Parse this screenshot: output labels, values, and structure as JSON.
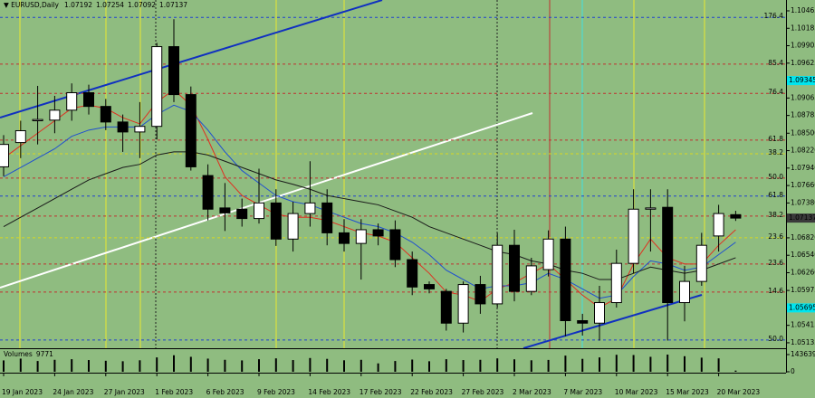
{
  "chart_data": {
    "type": "candlestick",
    "symbol": "EURUSD,Daily",
    "categories": [
      "19 Jan 2023",
      null,
      null,
      "24 Jan 2023",
      null,
      null,
      "27 Jan 2023",
      null,
      null,
      "1 Feb 2023",
      null,
      null,
      "6 Feb 2023",
      null,
      null,
      "9 Feb 2023",
      null,
      null,
      "14 Feb 2023",
      null,
      null,
      "17 Feb 2023",
      null,
      null,
      "22 Feb 2023",
      null,
      null,
      "27 Feb 2023",
      null,
      null,
      "2 Mar 2023",
      null,
      null,
      "7 Mar 2023",
      null,
      null,
      "10 Mar 2023",
      null,
      null,
      "15 Mar 2023",
      null,
      null,
      "20 Mar 2023",
      null
    ],
    "open": [
      1.0796,
      1.0835,
      1.087,
      1.0871,
      1.0887,
      1.0915,
      1.0893,
      1.0868,
      1.0852,
      1.0861,
      1.0989,
      1.0912,
      1.0782,
      1.073,
      1.0728,
      1.0713,
      1.0738,
      1.068,
      1.0721,
      1.0738,
      1.069,
      1.0673,
      1.0695,
      1.0695,
      1.0647,
      1.0607,
      1.0596,
      1.0545,
      1.0607,
      1.0576,
      1.067,
      1.0596,
      1.0631,
      1.068,
      1.0549,
      1.0545,
      1.0578,
      1.0641,
      1.0728,
      1.0731,
      1.0578,
      1.0612,
      1.0685,
      1.07192
    ],
    "high": [
      1.0847,
      1.087,
      1.0926,
      1.091,
      1.093,
      1.0928,
      1.0905,
      1.088,
      1.09,
      1.0995,
      1.1033,
      1.0925,
      1.08,
      1.077,
      1.0745,
      1.0793,
      1.076,
      1.074,
      1.0805,
      1.076,
      1.0712,
      1.0712,
      1.0705,
      1.071,
      1.066,
      1.0612,
      1.06,
      1.0612,
      1.0621,
      1.069,
      1.0695,
      1.065,
      1.0694,
      1.07,
      1.056,
      1.0605,
      1.0663,
      1.076,
      1.076,
      1.076,
      1.0637,
      1.069,
      1.0735,
      1.07254
    ],
    "low": [
      1.0781,
      1.081,
      1.0832,
      1.085,
      1.087,
      1.088,
      1.0855,
      1.082,
      1.081,
      1.084,
      1.09,
      1.079,
      1.071,
      1.0693,
      1.07,
      1.0705,
      1.0669,
      1.066,
      1.07,
      1.067,
      1.066,
      1.0615,
      1.067,
      1.0635,
      1.059,
      1.0593,
      1.0533,
      1.053,
      1.056,
      1.057,
      1.058,
      1.059,
      1.062,
      1.0524,
      1.0525,
      1.0517,
      1.057,
      1.0625,
      1.066,
      1.0517,
      1.0548,
      1.0605,
      1.066,
      1.07092
    ],
    "close": [
      1.0832,
      1.0854,
      1.0872,
      1.0887,
      1.0915,
      1.0893,
      1.0868,
      1.0852,
      1.0861,
      1.0989,
      1.0912,
      1.0796,
      1.0728,
      1.0722,
      1.0713,
      1.0738,
      1.068,
      1.0721,
      1.0738,
      1.069,
      1.0673,
      1.0695,
      1.0685,
      1.0647,
      1.0603,
      1.06,
      1.0545,
      1.0607,
      1.0576,
      1.067,
      1.0596,
      1.0637,
      1.068,
      1.0549,
      1.0545,
      1.0578,
      1.0641,
      1.0728,
      1.073,
      1.0578,
      1.0612,
      1.067,
      1.0721,
      1.07137
    ],
    "volumes": [
      95000,
      110000,
      90000,
      100000,
      105000,
      98000,
      92000,
      88000,
      96000,
      120000,
      138000,
      125000,
      110000,
      100000,
      95000,
      105000,
      112000,
      98000,
      115000,
      108000,
      96000,
      100000,
      70000,
      90000,
      102000,
      88000,
      105000,
      98000,
      100000,
      112000,
      104000,
      96000,
      99000,
      135000,
      108000,
      120000,
      142000,
      140000,
      125000,
      143639,
      130000,
      118000,
      112000,
      9771
    ],
    "up_color": "#ffffff",
    "down_color": "#000000",
    "ylim": [
      1.05047,
      1.10639
    ],
    "yticks": [
      1.10465,
      1.10185,
      1.09905,
      1.09625,
      1.09065,
      1.08785,
      {
        "value": 1.085,
        "label": "1.08500"
      },
      {
        "value": 1.0822,
        "label": "1.08220"
      },
      {
        "value": 1.0794,
        "label": "1.07940"
      },
      {
        "value": 1.0766,
        "label": "1.07660"
      },
      {
        "value": 1.0738,
        "label": "1.07380"
      },
      {
        "value": 1.0682,
        "label": "1.06820"
      },
      {
        "value": 1.0654,
        "label": "1.06540"
      },
      {
        "value": 1.0626,
        "label": "1.06260"
      },
      1.05975,
      1.05415,
      1.05135
    ],
    "price_markers": [
      1.09345,
      1.05695
    ],
    "price_marker_color": "#00e5ee",
    "volume_label": "Volumes",
    "volume_ylim": [
      0,
      143639
    ],
    "volume_yticks": [
      143639,
      0
    ],
    "indicators": [
      {
        "color": "#e03020",
        "values": [
          1.081,
          1.083,
          1.085,
          1.087,
          1.089,
          1.0895,
          1.089,
          1.0875,
          1.0865,
          1.09,
          1.092,
          1.0895,
          1.084,
          1.078,
          1.075,
          1.0735,
          1.072,
          1.0715,
          1.0715,
          1.071,
          1.07,
          1.069,
          1.0685,
          1.0675,
          1.065,
          1.0625,
          1.0595,
          1.059,
          1.058,
          1.06,
          1.061,
          1.0625,
          1.064,
          1.0615,
          1.059,
          1.057,
          1.0585,
          1.064,
          1.068,
          1.065,
          1.064,
          1.064,
          1.067,
          1.0695
        ]
      },
      {
        "color": "#1f4fd0",
        "values": [
          1.078,
          1.0795,
          1.081,
          1.0825,
          1.0845,
          1.0855,
          1.086,
          1.086,
          1.086,
          1.088,
          1.0895,
          1.0885,
          1.0855,
          1.082,
          1.079,
          1.077,
          1.075,
          1.074,
          1.0735,
          1.0725,
          1.0715,
          1.0705,
          1.07,
          1.069,
          1.0675,
          1.0655,
          1.063,
          1.0615,
          1.06,
          1.0605,
          1.0605,
          1.061,
          1.0625,
          1.0615,
          1.06,
          1.0585,
          1.059,
          1.062,
          1.0645,
          1.064,
          1.063,
          1.0635,
          1.0655,
          1.0675
        ]
      },
      {
        "color": "#1a1a1a",
        "values": [
          1.07,
          1.0715,
          1.073,
          1.0745,
          1.076,
          1.0775,
          1.0785,
          1.0795,
          1.08,
          1.0815,
          1.082,
          1.082,
          1.0815,
          1.0805,
          1.0795,
          1.0785,
          1.0775,
          1.0768,
          1.076,
          1.075,
          1.0745,
          1.074,
          1.0735,
          1.0725,
          1.0715,
          1.07,
          1.069,
          1.068,
          1.067,
          1.066,
          1.0655,
          1.0645,
          1.064,
          1.063,
          1.0625,
          1.0615,
          1.0615,
          1.0625,
          1.0635,
          1.063,
          1.0625,
          1.063,
          1.064,
          1.065
        ]
      }
    ],
    "levels": [
      {
        "label": "176.4",
        "value": 1.1036,
        "color": "#2040d0"
      },
      {
        "label": "85.4",
        "value": 1.0961,
        "color": "#c03030"
      },
      {
        "label": "76.4",
        "value": 1.0914,
        "color": "#c03030"
      },
      {
        "label": "61.8",
        "value": 1.0839,
        "color": "#c03030"
      },
      {
        "label": "38.2",
        "value": 1.0817,
        "color": "#d8d820"
      },
      {
        "label": "50.0",
        "value": 1.0778,
        "color": "#c03030"
      },
      {
        "label": "61.8",
        "value": 1.0749,
        "color": "#2040d0"
      },
      {
        "label": "38.2",
        "value": 1.0717,
        "color": "#c03030"
      },
      {
        "label": "23.6",
        "value": 1.0682,
        "color": "#d8d820"
      },
      {
        "label": "23.6",
        "value": 1.064,
        "color": "#c03030"
      },
      {
        "label": "14.6",
        "value": 1.0595,
        "color": "#c03030"
      },
      {
        "label": "50.0",
        "value": 1.0518,
        "color": "#2040d0"
      }
    ]
  }
}
